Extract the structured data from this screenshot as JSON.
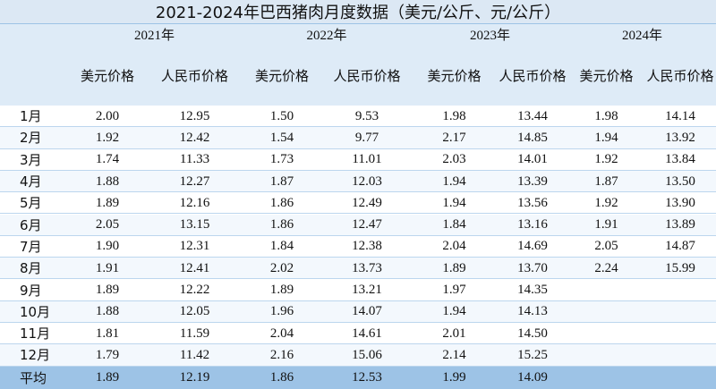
{
  "title": "2021-2024年巴西猪肉月度数据（美元/公斤、元/公斤）",
  "years": [
    "2021年",
    "2022年",
    "2023年",
    "2024年"
  ],
  "subheaders": [
    "美元价格",
    "人民币价格",
    "美元价格",
    "人民币价格",
    "美元价格",
    "人民币价格",
    "美元价格",
    "人民币价格"
  ],
  "rows": [
    {
      "label": "1月",
      "values": [
        "2.00",
        "12.95",
        "1.50",
        "9.53",
        "1.98",
        "13.44",
        "1.98",
        "14.14"
      ]
    },
    {
      "label": "2月",
      "values": [
        "1.92",
        "12.42",
        "1.54",
        "9.77",
        "2.17",
        "14.85",
        "1.94",
        "13.92"
      ]
    },
    {
      "label": "3月",
      "values": [
        "1.74",
        "11.33",
        "1.73",
        "11.01",
        "2.03",
        "14.01",
        "1.92",
        "13.84"
      ]
    },
    {
      "label": "4月",
      "values": [
        "1.88",
        "12.27",
        "1.87",
        "12.03",
        "1.94",
        "13.39",
        "1.87",
        "13.50"
      ]
    },
    {
      "label": "5月",
      "values": [
        "1.89",
        "12.16",
        "1.86",
        "12.49",
        "1.94",
        "13.56",
        "1.92",
        "13.90"
      ]
    },
    {
      "label": "6月",
      "values": [
        "2.05",
        "13.15",
        "1.86",
        "12.47",
        "1.84",
        "13.16",
        "1.91",
        "13.89"
      ]
    },
    {
      "label": "7月",
      "values": [
        "1.90",
        "12.31",
        "1.84",
        "12.38",
        "2.04",
        "14.69",
        "2.05",
        "14.87"
      ]
    },
    {
      "label": "8月",
      "values": [
        "1.91",
        "12.41",
        "2.02",
        "13.73",
        "1.89",
        "13.70",
        "2.24",
        "15.99"
      ]
    },
    {
      "label": "9月",
      "values": [
        "1.89",
        "12.22",
        "1.89",
        "13.21",
        "1.97",
        "14.35",
        null,
        null
      ]
    },
    {
      "label": "10月",
      "values": [
        "1.88",
        "12.05",
        "1.96",
        "14.07",
        "1.94",
        "14.13",
        null,
        null
      ]
    },
    {
      "label": "11月",
      "values": [
        "1.81",
        "11.59",
        "2.04",
        "14.61",
        "2.01",
        "14.50",
        null,
        null
      ]
    },
    {
      "label": "12月",
      "values": [
        "1.79",
        "11.42",
        "2.16",
        "15.06",
        "2.14",
        "15.25",
        null,
        null
      ]
    }
  ],
  "average": {
    "label": "平均",
    "values": [
      "1.89",
      "12.19",
      "1.86",
      "12.53",
      "1.99",
      "14.09",
      null,
      null
    ]
  }
}
